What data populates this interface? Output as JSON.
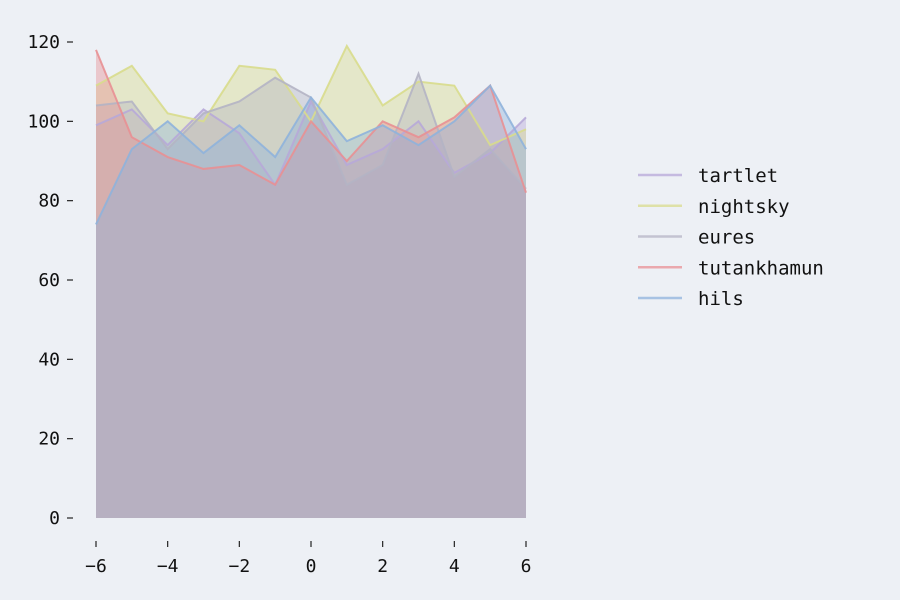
{
  "chart_data": {
    "type": "area",
    "title": "",
    "xlabel": "",
    "ylabel": "",
    "x": [
      -6,
      -5,
      -4,
      -3,
      -2,
      -1,
      0,
      1,
      2,
      3,
      4,
      5,
      6
    ],
    "xlim": [
      -6,
      6
    ],
    "ylim": [
      0,
      120
    ],
    "xticks": [
      -6,
      -4,
      -2,
      0,
      2,
      4,
      6
    ],
    "xtick_labels": [
      "−6",
      "−4",
      "−2",
      "0",
      "2",
      "4",
      "6"
    ],
    "yticks": [
      0,
      20,
      40,
      60,
      80,
      100,
      120
    ],
    "ytick_labels": [
      "0",
      "20",
      "40",
      "60",
      "80",
      "100",
      "120"
    ],
    "grid": false,
    "legend_position": "right",
    "series": [
      {
        "name": "tartlet",
        "color": "#b7a8d8",
        "values": [
          99,
          103,
          94,
          103,
          97,
          84,
          105,
          89,
          93,
          100,
          87,
          92,
          101
        ]
      },
      {
        "name": "nightsky",
        "color": "#d8dc8c",
        "values": [
          109,
          114,
          102,
          100,
          114,
          113,
          100,
          119,
          104,
          110,
          109,
          94,
          98
        ]
      },
      {
        "name": "eures",
        "color": "#b4b4c4",
        "values": [
          104,
          105,
          93,
          102,
          105,
          111,
          106,
          84,
          89,
          112,
          86,
          93,
          83
        ]
      },
      {
        "name": "tutankhamun",
        "color": "#e89094",
        "values": [
          118,
          96,
          91,
          88,
          89,
          84,
          100,
          90,
          100,
          96,
          101,
          109,
          82
        ]
      },
      {
        "name": "hils",
        "color": "#8fb3dc",
        "values": [
          74,
          93,
          100,
          92,
          99,
          91,
          106,
          95,
          99,
          94,
          100,
          109,
          93
        ]
      }
    ]
  }
}
